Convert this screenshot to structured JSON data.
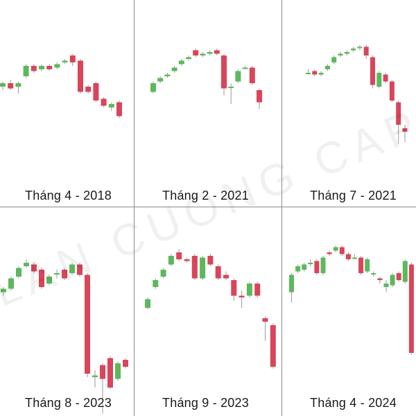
{
  "colors": {
    "up": "#5cb85c",
    "down": "#d9455a",
    "wick": "#9a9a9a",
    "divider": "#8a8a8a"
  },
  "watermark": "LAN CUONG CAPITAL",
  "chart_data": [
    {
      "type": "candlestick",
      "title": "Tháng 4 - 2018",
      "ylim": [
        0,
        100
      ],
      "candles": [
        {
          "o": 54,
          "c": 56,
          "h": 57,
          "l": 52
        },
        {
          "o": 56,
          "c": 53,
          "h": 58,
          "l": 52
        },
        {
          "o": 54,
          "c": 56,
          "h": 57,
          "l": 50
        },
        {
          "o": 60,
          "c": 66,
          "h": 67,
          "l": 59
        },
        {
          "o": 66,
          "c": 63,
          "h": 67,
          "l": 62
        },
        {
          "o": 64,
          "c": 66,
          "h": 67,
          "l": 63
        },
        {
          "o": 66,
          "c": 64,
          "h": 67,
          "l": 63
        },
        {
          "o": 65,
          "c": 67,
          "h": 68,
          "l": 64
        },
        {
          "o": 68,
          "c": 69,
          "h": 70,
          "l": 67
        },
        {
          "o": 72,
          "c": 68,
          "h": 73,
          "l": 66
        },
        {
          "o": 69,
          "c": 51,
          "h": 70,
          "l": 50
        },
        {
          "o": 54,
          "c": 51,
          "h": 55,
          "l": 50
        },
        {
          "o": 56,
          "c": 46,
          "h": 57,
          "l": 45
        },
        {
          "o": 47,
          "c": 43,
          "h": 48,
          "l": 42
        },
        {
          "o": 42,
          "c": 44,
          "h": 45,
          "l": 40
        },
        {
          "o": 45,
          "c": 37,
          "h": 46,
          "l": 36
        }
      ]
    },
    {
      "type": "candlestick",
      "title": "Tháng 2 - 2021",
      "ylim": [
        0,
        100
      ],
      "candles": [
        {
          "o": 51,
          "c": 56,
          "h": 57,
          "l": 50
        },
        {
          "o": 57,
          "c": 59,
          "h": 60,
          "l": 56
        },
        {
          "o": 60,
          "c": 61,
          "h": 62,
          "l": 59
        },
        {
          "o": 63,
          "c": 65,
          "h": 66,
          "l": 62
        },
        {
          "o": 67,
          "c": 69,
          "h": 70,
          "l": 66
        },
        {
          "o": 70,
          "c": 71,
          "h": 72,
          "l": 69
        },
        {
          "o": 75,
          "c": 72,
          "h": 76,
          "l": 71
        },
        {
          "o": 72,
          "c": 73,
          "h": 74,
          "l": 71
        },
        {
          "o": 73,
          "c": 74,
          "h": 75,
          "l": 72
        },
        {
          "o": 75,
          "c": 73,
          "h": 76,
          "l": 72
        },
        {
          "o": 72,
          "c": 53,
          "h": 73,
          "l": 49
        },
        {
          "o": 54,
          "c": 54,
          "h": 56,
          "l": 44
        },
        {
          "o": 57,
          "c": 63,
          "h": 64,
          "l": 56
        },
        {
          "o": 65,
          "c": 65,
          "h": 66,
          "l": 64
        },
        {
          "o": 65,
          "c": 56,
          "h": 66,
          "l": 55
        },
        {
          "o": 52,
          "c": 45,
          "h": 53,
          "l": 41
        }
      ]
    },
    {
      "type": "candlestick",
      "title": "Tháng 7 - 2021",
      "ylim": [
        0,
        100
      ],
      "candles": [
        {
          "o": 62,
          "c": 62,
          "h": 64,
          "l": 61
        },
        {
          "o": 63,
          "c": 61,
          "h": 64,
          "l": 60
        },
        {
          "o": 61,
          "c": 62,
          "h": 63,
          "l": 60
        },
        {
          "o": 64,
          "c": 66,
          "h": 67,
          "l": 63
        },
        {
          "o": 68,
          "c": 71,
          "h": 72,
          "l": 67
        },
        {
          "o": 72,
          "c": 73,
          "h": 74,
          "l": 71
        },
        {
          "o": 73,
          "c": 74,
          "h": 75,
          "l": 72
        },
        {
          "o": 75,
          "c": 76,
          "h": 77,
          "l": 74
        },
        {
          "o": 77,
          "c": 77,
          "h": 78,
          "l": 75
        },
        {
          "o": 77,
          "c": 72,
          "h": 78,
          "l": 70
        },
        {
          "o": 71,
          "c": 55,
          "h": 72,
          "l": 53
        },
        {
          "o": 54,
          "c": 62,
          "h": 63,
          "l": 53
        },
        {
          "o": 61,
          "c": 57,
          "h": 62,
          "l": 56
        },
        {
          "o": 57,
          "c": 46,
          "h": 58,
          "l": 45
        },
        {
          "o": 45,
          "c": 32,
          "h": 46,
          "l": 21
        },
        {
          "o": 30,
          "c": 28,
          "h": 32,
          "l": 22
        }
      ]
    },
    {
      "type": "candlestick",
      "title": "Tháng 8 - 2023",
      "ylim": [
        0,
        100
      ],
      "candles": [
        {
          "o": 55,
          "c": 57,
          "h": 58,
          "l": 53
        },
        {
          "o": 57,
          "c": 63,
          "h": 64,
          "l": 56
        },
        {
          "o": 64,
          "c": 69,
          "h": 70,
          "l": 63
        },
        {
          "o": 70,
          "c": 72,
          "h": 74,
          "l": 69
        },
        {
          "o": 71,
          "c": 67,
          "h": 72,
          "l": 66
        },
        {
          "o": 68,
          "c": 58,
          "h": 69,
          "l": 57
        },
        {
          "o": 60,
          "c": 64,
          "h": 65,
          "l": 59
        },
        {
          "o": 66,
          "c": 66,
          "h": 68,
          "l": 63
        },
        {
          "o": 68,
          "c": 63,
          "h": 69,
          "l": 62
        },
        {
          "o": 66,
          "c": 71,
          "h": 72,
          "l": 65
        },
        {
          "o": 71,
          "c": 65,
          "h": 72,
          "l": 64
        },
        {
          "o": 65,
          "c": 8,
          "h": 66,
          "l": 6
        },
        {
          "o": 6,
          "c": 7,
          "h": 10,
          "l": 0
        },
        {
          "o": 13,
          "c": 5,
          "h": 14,
          "l": -15
        },
        {
          "o": 17,
          "c": 0,
          "h": 18,
          "l": -1
        },
        {
          "o": 5,
          "c": 14,
          "h": 15,
          "l": 4
        },
        {
          "o": 16,
          "c": 12,
          "h": 17,
          "l": 11
        }
      ]
    },
    {
      "type": "candlestick",
      "title": "Tháng 9 - 2023",
      "ylim": [
        0,
        100
      ],
      "candles": [
        {
          "o": 46,
          "c": 51,
          "h": 52,
          "l": 45
        },
        {
          "o": 58,
          "c": 62,
          "h": 63,
          "l": 57
        },
        {
          "o": 64,
          "c": 68,
          "h": 69,
          "l": 63
        },
        {
          "o": 71,
          "c": 76,
          "h": 77,
          "l": 70
        },
        {
          "o": 78,
          "c": 74,
          "h": 80,
          "l": 73
        },
        {
          "o": 74,
          "c": 73,
          "h": 75,
          "l": 72
        },
        {
          "o": 76,
          "c": 63,
          "h": 77,
          "l": 62
        },
        {
          "o": 63,
          "c": 75,
          "h": 76,
          "l": 62
        },
        {
          "o": 76,
          "c": 71,
          "h": 77,
          "l": 70
        },
        {
          "o": 70,
          "c": 63,
          "h": 71,
          "l": 62
        },
        {
          "o": 65,
          "c": 63,
          "h": 67,
          "l": 62
        },
        {
          "o": 62,
          "c": 53,
          "h": 63,
          "l": 50
        },
        {
          "o": 53,
          "c": 52,
          "h": 56,
          "l": 46
        },
        {
          "o": 53,
          "c": 60,
          "h": 61,
          "l": 52
        },
        {
          "o": 60,
          "c": 53,
          "h": 61,
          "l": 52
        },
        {
          "o": 40,
          "c": 38,
          "h": 41,
          "l": 27
        },
        {
          "o": 36,
          "c": 12,
          "h": 37,
          "l": 11
        }
      ]
    },
    {
      "type": "candlestick",
      "title": "Tháng 4 - 2024",
      "ylim": [
        0,
        100
      ],
      "candles": [
        {
          "o": 55,
          "c": 65,
          "h": 66,
          "l": 49
        },
        {
          "o": 67,
          "c": 70,
          "h": 71,
          "l": 66
        },
        {
          "o": 68,
          "c": 71,
          "h": 72,
          "l": 67
        },
        {
          "o": 72,
          "c": 72,
          "h": 74,
          "l": 70
        },
        {
          "o": 73,
          "c": 66,
          "h": 74,
          "l": 65
        },
        {
          "o": 66,
          "c": 75,
          "h": 76,
          "l": 65
        },
        {
          "o": 78,
          "c": 77,
          "h": 79,
          "l": 76
        },
        {
          "o": 79,
          "c": 81,
          "h": 82,
          "l": 78
        },
        {
          "o": 81,
          "c": 77,
          "h": 82,
          "l": 76
        },
        {
          "o": 77,
          "c": 74,
          "h": 78,
          "l": 73
        },
        {
          "o": 75,
          "c": 75,
          "h": 77,
          "l": 74
        },
        {
          "o": 75,
          "c": 66,
          "h": 76,
          "l": 65
        },
        {
          "o": 67,
          "c": 74,
          "h": 75,
          "l": 66
        },
        {
          "o": 66,
          "c": 66,
          "h": 67,
          "l": 64
        },
        {
          "o": 63,
          "c": 62,
          "h": 64,
          "l": 60
        },
        {
          "o": 58,
          "c": 60,
          "h": 62,
          "l": 55
        },
        {
          "o": 59,
          "c": 65,
          "h": 66,
          "l": 58
        },
        {
          "o": 66,
          "c": 62,
          "h": 67,
          "l": 61
        },
        {
          "o": 61,
          "c": 73,
          "h": 74,
          "l": 60
        },
        {
          "o": 71,
          "c": 20,
          "h": 72,
          "l": 19
        }
      ]
    }
  ]
}
